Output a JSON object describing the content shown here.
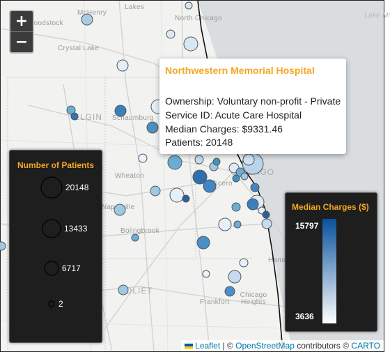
{
  "map": {
    "places": [
      {
        "name": "McHenry",
        "cls": "place"
      },
      {
        "name": "Woodstock",
        "cls": "place"
      },
      {
        "name": "Lakes",
        "cls": "place"
      },
      {
        "name": "North Chicago",
        "cls": "place"
      },
      {
        "name": "Crystal Lake",
        "cls": "place"
      },
      {
        "name": "Lake Mi",
        "cls": "place lake"
      },
      {
        "name": "ELGIN",
        "cls": "place big"
      },
      {
        "name": "Schaumburg",
        "cls": "place"
      },
      {
        "name": "Wheaton",
        "cls": "place"
      },
      {
        "name": "CHICAGO",
        "cls": "place big"
      },
      {
        "name": "Cicero",
        "cls": "place"
      },
      {
        "name": "Naperville",
        "cls": "place"
      },
      {
        "name": "Bolingbrook",
        "cls": "place"
      },
      {
        "name": "Hamm",
        "cls": "place"
      },
      {
        "name": "JOLIET",
        "cls": "place big"
      },
      {
        "name": "Frankfort",
        "cls": "place"
      },
      {
        "name": "Chicago Heights",
        "cls": "place"
      }
    ]
  },
  "zoom": {
    "in_label": "+",
    "out_label": "−"
  },
  "popup": {
    "title": "Northwestern Memorial Hospital",
    "ownership": "Ownership: Voluntary non-profit - Private",
    "service": "Service ID: Acute Care Hospital",
    "charges": "Median Charges: $9331.46",
    "patients": "Patients: 20148"
  },
  "size_legend": {
    "title": "Number of Patients",
    "items": [
      {
        "label": "20148"
      },
      {
        "label": "13433"
      },
      {
        "label": "6717"
      },
      {
        "label": "2"
      }
    ]
  },
  "color_legend": {
    "title": "Median Charges ($)",
    "max": "15797",
    "min": "3636",
    "color_low": "#ffffff",
    "color_high": "#08519c"
  },
  "attribution": {
    "leaflet": "Leaflet",
    "sep1": " | © ",
    "osm": "OpenStreetMap",
    "contrib": " contributors © ",
    "carto": "CARTO"
  }
}
